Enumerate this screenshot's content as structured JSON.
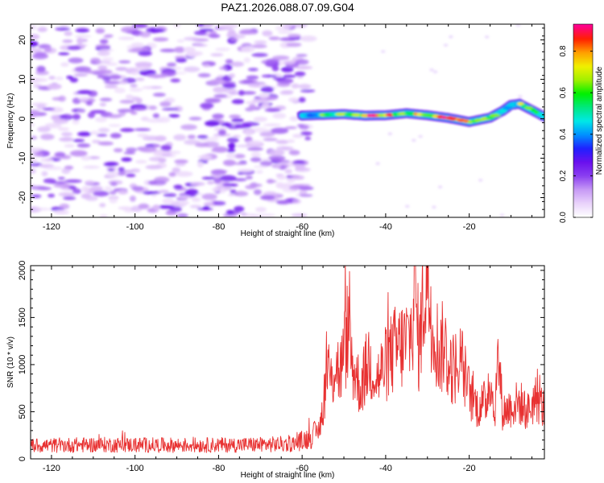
{
  "figure": {
    "title": "PAZ1.2026.088.07.09.G04"
  },
  "chart_data": [
    {
      "type": "heatmap",
      "name": "spectrogram",
      "xlabel": "Height of straight line (km)",
      "ylabel": "Frequency (Hz)",
      "xlim": [
        -125,
        -2
      ],
      "ylim": [
        -25,
        24
      ],
      "xticks": [
        -120,
        -100,
        -80,
        -60,
        -40,
        -20
      ],
      "xtick_labels": [
        "-120",
        "-100",
        "-80",
        "-60",
        "-40",
        "-20"
      ],
      "yticks": [
        -20,
        -10,
        0,
        10,
        20
      ],
      "ytick_labels": [
        "-20",
        "-10",
        "0",
        "10",
        "20"
      ],
      "noise_region_x": [
        -125,
        -60
      ],
      "signal_trace": {
        "x": [
          -60,
          -55,
          -50,
          -45,
          -40,
          -35,
          -30,
          -25,
          -20,
          -15,
          -12,
          -10,
          -8,
          -5,
          -2
        ],
        "freq_hz": [
          0.8,
          1.0,
          1.2,
          0.8,
          0.9,
          1.4,
          0.9,
          0.2,
          -0.8,
          0.3,
          2.0,
          3.5,
          3.8,
          2.2,
          0.5
        ],
        "peak_amplitude": [
          0.35,
          0.6,
          0.7,
          0.9,
          0.8,
          0.75,
          0.85,
          0.9,
          0.7,
          0.65,
          0.55,
          0.45,
          0.7,
          0.6,
          0.5
        ]
      },
      "colorbar": {
        "label": "Normalized spectral amplitude",
        "range": [
          0.0,
          0.93
        ],
        "ticks": [
          0.0,
          0.2,
          0.4,
          0.6,
          0.8
        ],
        "tick_labels": [
          "0.0",
          "0.2",
          "0.4",
          "0.6",
          "0.8"
        ],
        "colors": [
          "#ffffff",
          "#e9d2fb",
          "#c699f5",
          "#8a3ff0",
          "#6a10ee",
          "#2020ff",
          "#0090ff",
          "#00e8e8",
          "#00e880",
          "#00f000",
          "#a0f000",
          "#f0f000",
          "#ffa000",
          "#ff2000",
          "#ff0090"
        ]
      }
    },
    {
      "type": "line",
      "name": "snr",
      "xlabel": "Height of straight line (km)",
      "ylabel": "SNR (10 * v/v)",
      "xlim": [
        -125,
        -2
      ],
      "ylim": [
        0,
        2050
      ],
      "xticks": [
        -120,
        -100,
        -80,
        -60,
        -40,
        -20
      ],
      "xtick_labels": [
        "-120",
        "-100",
        "-80",
        "-60",
        "-40",
        "-20"
      ],
      "yticks": [
        0,
        500,
        1000,
        1500,
        2000
      ],
      "ytick_labels": [
        "0",
        "500",
        "1000",
        "1500",
        "2000"
      ],
      "line_color": "#e83232",
      "series": [
        {
          "name": "SNR",
          "x": [
            -125,
            -110,
            -90,
            -70,
            -62,
            -58,
            -56,
            -55,
            -54,
            -53,
            -52,
            -51,
            -50,
            -49,
            -48,
            -46,
            -44,
            -42,
            -40,
            -38,
            -36,
            -34,
            -33,
            -32,
            -31,
            -30,
            -29,
            -28,
            -27,
            -26,
            -25,
            -24,
            -22,
            -20,
            -18,
            -16,
            -15,
            -14,
            -13,
            -12,
            -10,
            -8,
            -6,
            -4,
            -2
          ],
          "values": [
            140,
            150,
            145,
            150,
            160,
            230,
            300,
            550,
            1000,
            800,
            1050,
            900,
            1100,
            1400,
            1000,
            750,
            1050,
            850,
            1000,
            1150,
            1200,
            1300,
            1800,
            1150,
            1700,
            1950,
            1550,
            1300,
            1100,
            1250,
            1000,
            950,
            1050,
            700,
            550,
            600,
            900,
            450,
            1100,
            500,
            550,
            600,
            500,
            650,
            520
          ]
        }
      ]
    }
  ]
}
